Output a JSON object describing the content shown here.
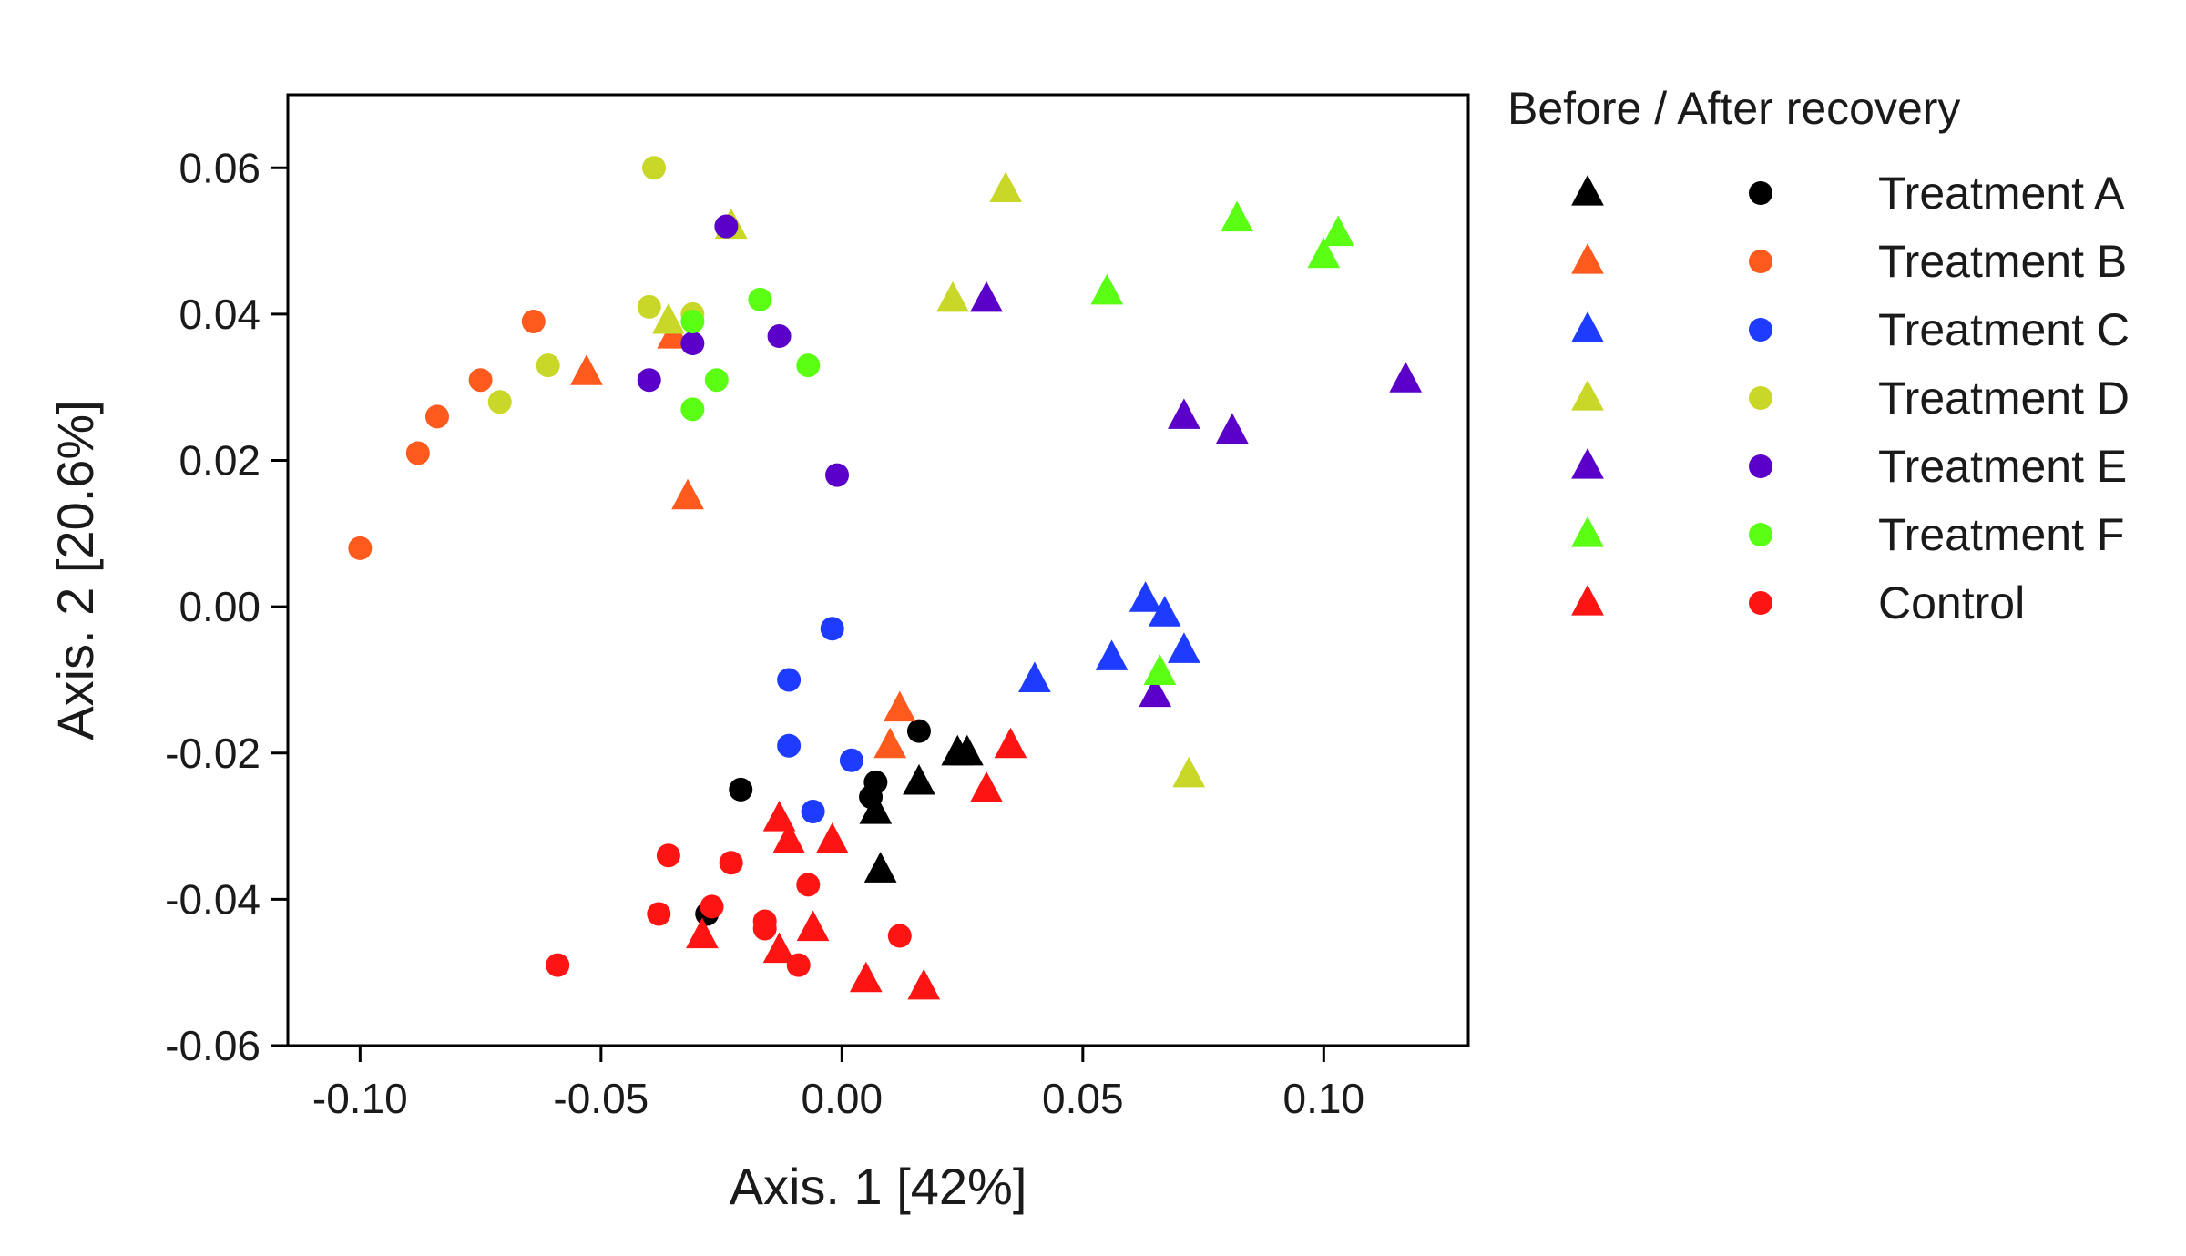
{
  "chart_data": {
    "type": "scatter",
    "title": "",
    "xlabel": "Axis. 1 [42%]",
    "ylabel": "Axis. 2 [20.6%]",
    "xlim": [
      -0.115,
      0.13
    ],
    "ylim": [
      -0.06,
      0.07
    ],
    "xticks": [
      -0.1,
      -0.05,
      0.0,
      0.05,
      0.1
    ],
    "xtick_labels": [
      "-0.10",
      "-0.05",
      "0.00",
      "0.05",
      "0.10"
    ],
    "yticks": [
      -0.06,
      -0.04,
      -0.02,
      0.0,
      0.02,
      0.04,
      0.06
    ],
    "ytick_labels": [
      "-0.06",
      "-0.04",
      "-0.02",
      "0.00",
      "0.02",
      "0.04",
      "0.06"
    ],
    "grid": false,
    "legend": {
      "title": "Before / After recovery",
      "placement": "right",
      "entries": [
        "Treatment A",
        "Treatment B",
        "Treatment C",
        "Treatment D",
        "Treatment E",
        "Treatment F",
        "Control"
      ]
    },
    "series": [
      {
        "name": "Treatment A",
        "color": "#000000",
        "before_triangles": [
          [
            0.007,
            -0.028
          ],
          [
            0.008,
            -0.036
          ],
          [
            0.016,
            -0.024
          ],
          [
            0.024,
            -0.02
          ],
          [
            0.026,
            -0.02
          ]
        ],
        "after_circles": [
          [
            -0.021,
            -0.025
          ],
          [
            0.006,
            -0.026
          ],
          [
            0.007,
            -0.024
          ],
          [
            0.016,
            -0.017
          ],
          [
            -0.028,
            -0.042
          ]
        ]
      },
      {
        "name": "Treatment B",
        "color": "#ff5a1e",
        "before_triangles": [
          [
            -0.053,
            0.032
          ],
          [
            -0.035,
            0.037
          ],
          [
            -0.032,
            0.015
          ],
          [
            0.01,
            -0.019
          ],
          [
            0.012,
            -0.014
          ]
        ],
        "after_circles": [
          [
            -0.1,
            0.008
          ],
          [
            -0.088,
            0.021
          ],
          [
            -0.084,
            0.026
          ],
          [
            -0.075,
            0.031
          ],
          [
            -0.064,
            0.039
          ]
        ]
      },
      {
        "name": "Treatment C",
        "color": "#1e3cff",
        "before_triangles": [
          [
            0.04,
            -0.01
          ],
          [
            0.056,
            -0.007
          ],
          [
            0.063,
            0.001
          ],
          [
            0.067,
            -0.001
          ],
          [
            0.071,
            -0.006
          ]
        ],
        "after_circles": [
          [
            -0.011,
            -0.01
          ],
          [
            -0.011,
            -0.019
          ],
          [
            -0.002,
            -0.003
          ],
          [
            0.002,
            -0.021
          ],
          [
            -0.006,
            -0.028
          ]
        ]
      },
      {
        "name": "Treatment D",
        "color": "#c8d728",
        "before_triangles": [
          [
            -0.036,
            0.039
          ],
          [
            -0.023,
            0.052
          ],
          [
            0.023,
            0.042
          ],
          [
            0.034,
            0.057
          ],
          [
            0.072,
            -0.023
          ]
        ],
        "after_circles": [
          [
            -0.039,
            0.06
          ],
          [
            -0.04,
            0.041
          ],
          [
            -0.031,
            0.04
          ],
          [
            -0.061,
            0.033
          ],
          [
            -0.071,
            0.028
          ]
        ]
      },
      {
        "name": "Treatment E",
        "color": "#5a00c8",
        "before_triangles": [
          [
            0.03,
            0.042
          ],
          [
            0.071,
            0.026
          ],
          [
            0.081,
            0.024
          ],
          [
            0.117,
            0.031
          ],
          [
            0.065,
            -0.012
          ]
        ],
        "after_circles": [
          [
            -0.024,
            0.052
          ],
          [
            -0.031,
            0.036
          ],
          [
            -0.04,
            0.031
          ],
          [
            -0.013,
            0.037
          ],
          [
            -0.001,
            0.018
          ]
        ]
      },
      {
        "name": "Treatment F",
        "color": "#5aff14",
        "before_triangles": [
          [
            0.055,
            0.043
          ],
          [
            0.082,
            0.053
          ],
          [
            0.1,
            0.048
          ],
          [
            0.103,
            0.051
          ],
          [
            0.066,
            -0.009
          ]
        ],
        "after_circles": [
          [
            -0.017,
            0.042
          ],
          [
            -0.031,
            0.039
          ],
          [
            -0.026,
            0.031
          ],
          [
            -0.031,
            0.027
          ],
          [
            -0.007,
            0.033
          ]
        ]
      },
      {
        "name": "Control",
        "color": "#ff1414",
        "before_triangles": [
          [
            -0.013,
            -0.029
          ],
          [
            -0.011,
            -0.032
          ],
          [
            -0.002,
            -0.032
          ],
          [
            -0.029,
            -0.045
          ],
          [
            -0.013,
            -0.047
          ],
          [
            -0.006,
            -0.044
          ],
          [
            0.005,
            -0.051
          ],
          [
            0.017,
            -0.052
          ],
          [
            0.03,
            -0.025
          ],
          [
            0.035,
            -0.019
          ]
        ],
        "after_circles": [
          [
            -0.059,
            -0.049
          ],
          [
            -0.038,
            -0.042
          ],
          [
            -0.036,
            -0.034
          ],
          [
            -0.027,
            -0.041
          ],
          [
            -0.023,
            -0.035
          ],
          [
            -0.016,
            -0.043
          ],
          [
            -0.009,
            -0.049
          ],
          [
            -0.007,
            -0.038
          ],
          [
            0.012,
            -0.045
          ],
          [
            -0.016,
            -0.044
          ]
        ]
      }
    ]
  }
}
